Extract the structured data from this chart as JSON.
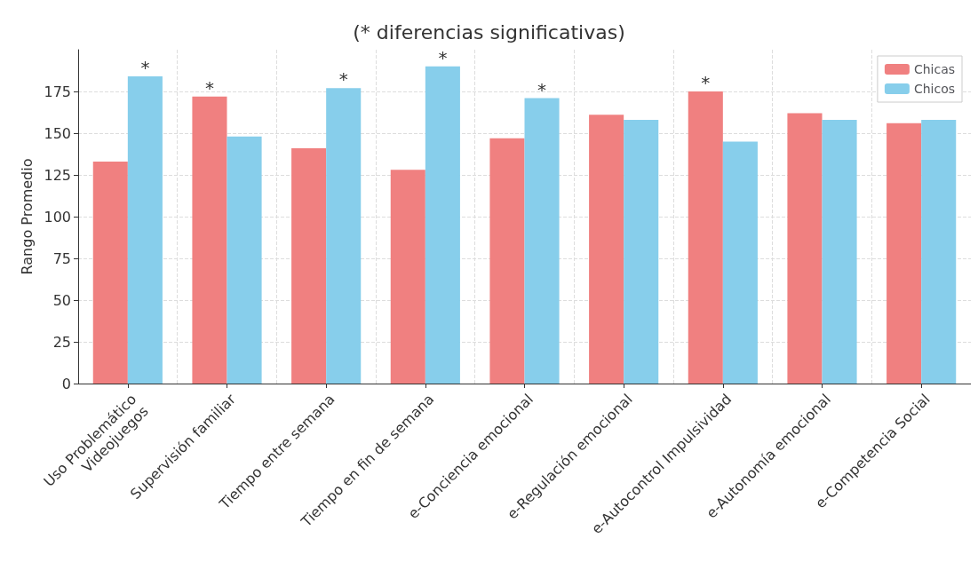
{
  "chart_data": {
    "type": "bar",
    "title": "(* diferencias significativas)",
    "ylabel": "Rango Promedio",
    "categories": [
      "Uso Problemático\nVideojuegos",
      "Supervisión familiar",
      "Tiempo entre semana",
      "Tiempo en fin de semana",
      "e-Conciencia emocional",
      "e-Regulación emocional",
      "e-Autocontrol Impulsividad",
      "e-Autonomía emocional",
      "e-Competencia Social"
    ],
    "series": [
      {
        "name": "Chicas",
        "color": "#f08080",
        "values": [
          133,
          172,
          141,
          128,
          147,
          161,
          175,
          162,
          156
        ]
      },
      {
        "name": "Chicos",
        "color": "#87ceeb",
        "values": [
          184,
          148,
          177,
          190,
          171,
          158,
          145,
          158,
          158
        ]
      }
    ],
    "annotations": [
      {
        "text": "*",
        "x": "Uso Problemático\nVideojuegos",
        "y": 184
      },
      {
        "text": "*",
        "x": "Supervisión familiar",
        "y": 172
      },
      {
        "text": "*",
        "x": "Tiempo entre semana",
        "y": 177
      },
      {
        "text": "*",
        "x": "Tiempo en fin de semana",
        "y": 190
      },
      {
        "text": "*",
        "x": "e-Conciencia emocional",
        "y": 171
      },
      {
        "text": "*",
        "x": "e-Autocontrol Impulsividad",
        "y": 175
      }
    ],
    "ylim": [
      0,
      200
    ],
    "yticks": [
      0,
      25,
      50,
      75,
      100,
      125,
      150,
      175
    ],
    "grid": true,
    "legend": "top right"
  }
}
